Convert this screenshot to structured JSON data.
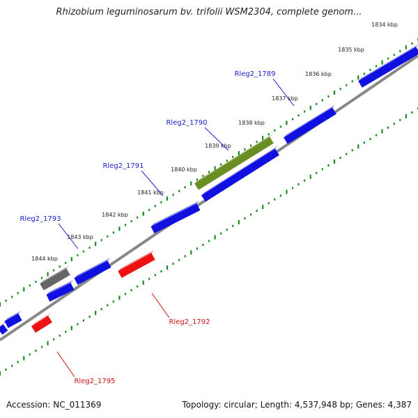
{
  "title": "Rhizobium leguminosarum bv. trifolii WSM2304, complete genom...",
  "footer": {
    "accession": "Accession: NC_011369",
    "summary": "Topology: circular; Length: 4,537,948 bp; Genes: 4,387"
  },
  "colors": {
    "forward_gene": "#1010e0",
    "reverse_gene": "#ee1111",
    "selected_gene": "#6b8e23",
    "other_gene": "#666666",
    "tick_dots": "#1a8a1a",
    "backbone": "#888888",
    "forward_label": "#1a1acc",
    "reverse_label": "#cc1111"
  },
  "ticks": [
    {
      "label": "1834 kbp"
    },
    {
      "label": "1835 kbp"
    },
    {
      "label": "1836 kbp"
    },
    {
      "label": "1837 kbp"
    },
    {
      "label": "1838 kbp"
    },
    {
      "label": "1839 kbp"
    },
    {
      "label": "1840 kbp"
    },
    {
      "label": "1841 kbp"
    },
    {
      "label": "1842 kbp"
    },
    {
      "label": "1843 kbp"
    },
    {
      "label": "1844 kbp"
    }
  ],
  "gene_labels": [
    {
      "name": "Rleg2_1789",
      "strand": "forward"
    },
    {
      "name": "Rleg2_1790",
      "strand": "forward"
    },
    {
      "name": "Rleg2_1791",
      "strand": "forward"
    },
    {
      "name": "Rleg2_1793",
      "strand": "forward"
    },
    {
      "name": "Rleg2_1792",
      "strand": "reverse"
    },
    {
      "name": "Rleg2_1795",
      "strand": "reverse"
    }
  ]
}
